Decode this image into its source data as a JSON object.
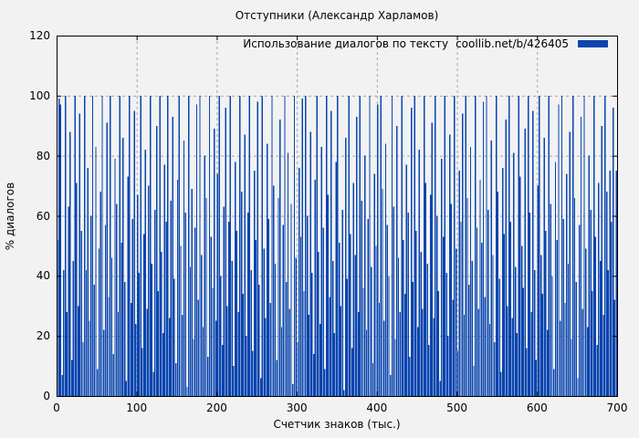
{
  "chart_data": {
    "type": "bar",
    "style": "impulses-dense-vertical-bars",
    "title": "Отступники (Александр Харламов)",
    "legend": {
      "label": "Использование диалогов по тексту",
      "source": "coollib.net/b/426405",
      "position": "top-right-inside"
    },
    "xlabel": "Счетчик знаков (тыс.)",
    "ylabel": "% диалогов",
    "xlim": [
      0,
      700
    ],
    "ylim": [
      0,
      120
    ],
    "x_ticks": [
      0,
      100,
      200,
      300,
      400,
      500,
      600,
      700
    ],
    "y_ticks": [
      0,
      20,
      40,
      60,
      80,
      100,
      120
    ],
    "grid": true,
    "x_start": 1,
    "x_step": 2,
    "values": [
      52,
      99,
      97,
      7,
      42,
      100,
      28,
      63,
      88,
      12,
      45,
      100,
      71,
      30,
      94,
      55,
      18,
      100,
      42,
      76,
      25,
      60,
      100,
      37,
      83,
      9,
      49,
      68,
      100,
      22,
      57,
      91,
      33,
      100,
      46,
      14,
      79,
      64,
      28,
      100,
      51,
      86,
      38,
      5,
      73,
      100,
      31,
      59,
      95,
      24,
      67,
      41,
      100,
      16,
      54,
      82,
      29,
      70,
      100,
      44,
      8,
      62,
      90,
      35,
      100,
      48,
      21,
      77,
      58,
      100,
      26,
      65,
      93,
      39,
      11,
      72,
      100,
      50,
      27,
      85,
      61,
      3,
      100,
      43,
      69,
      19,
      56,
      97,
      32,
      100,
      47,
      23,
      80,
      66,
      13,
      100,
      53,
      36,
      89,
      25,
      74,
      100,
      40,
      17,
      63,
      96,
      30,
      58,
      100,
      45,
      10,
      78,
      55,
      28,
      100,
      68,
      34,
      87,
      20,
      61,
      100,
      42,
      15,
      75,
      52,
      98,
      37,
      6,
      100,
      49,
      26,
      84,
      59,
      31,
      100,
      70,
      44,
      12,
      66,
      92,
      23,
      57,
      100,
      38,
      81,
      29,
      64,
      4,
      100,
      46,
      18,
      76,
      53,
      99,
      35,
      100,
      60,
      27,
      88,
      41,
      14,
      72,
      100,
      48,
      24,
      83,
      56,
      9,
      100,
      67,
      33,
      95,
      45,
      21,
      78,
      100,
      51,
      30,
      62,
      2,
      86,
      39,
      100,
      54,
      16,
      71,
      47,
      93,
      28,
      100,
      65,
      36,
      80,
      22,
      59,
      100,
      43,
      11,
      74,
      50,
      97,
      31,
      100,
      69,
      25,
      84,
      57,
      40,
      7,
      100,
      63,
      19,
      90,
      46,
      28,
      100,
      52,
      34,
      77,
      61,
      13,
      96,
      38,
      100,
      55,
      23,
      82,
      48,
      29,
      100,
      71,
      44,
      17,
      67,
      91,
      26,
      100,
      60,
      35,
      5,
      79,
      53,
      100,
      41,
      20,
      87,
      64,
      32,
      100,
      49,
      15,
      75,
      58,
      94,
      27,
      100,
      66,
      37,
      83,
      45,
      10,
      100,
      56,
      29,
      72,
      51,
      98,
      33,
      100,
      62,
      24,
      85,
      47,
      18,
      100,
      68,
      39,
      8,
      76,
      54,
      92,
      30,
      100,
      58,
      26,
      81,
      43,
      21,
      100,
      73,
      50,
      36,
      89,
      16,
      100,
      61,
      28,
      95,
      42,
      12,
      70,
      100,
      47,
      34,
      86,
      55,
      22,
      100,
      64,
      40,
      9,
      78,
      52,
      97,
      25,
      100,
      59,
      31,
      74,
      44,
      88,
      19,
      100,
      66,
      38,
      6,
      57,
      93,
      29,
      100,
      49,
      23,
      80,
      62,
      35,
      100,
      53,
      17,
      71,
      45,
      90,
      27,
      100,
      68,
      42,
      75,
      58,
      96,
      32,
      75
    ]
  },
  "colors": {
    "bar": "#0a45af",
    "background": "#f2f2f2",
    "grid": "#a6a6a6",
    "border": "#000000",
    "text": "#000000"
  }
}
